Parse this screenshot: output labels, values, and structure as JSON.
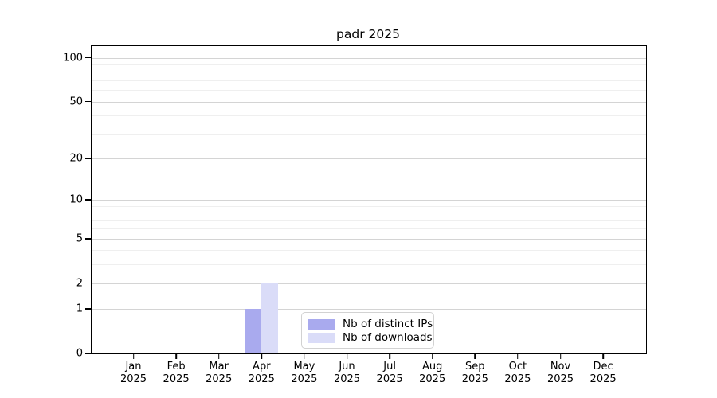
{
  "title": "padr 2025",
  "year_label": "2025",
  "chart_data": {
    "type": "bar",
    "title": "padr 2025",
    "xlabel": "",
    "ylabel": "",
    "categories": [
      "Jan",
      "Feb",
      "Mar",
      "Apr",
      "May",
      "Jun",
      "Jul",
      "Aug",
      "Sep",
      "Oct",
      "Nov",
      "Dec"
    ],
    "category_year": "2025",
    "series": [
      {
        "name": "Nb of distinct IPs",
        "color": "#a9aaee",
        "values": [
          0,
          0,
          0,
          1,
          0,
          0,
          0,
          0,
          0,
          0,
          0,
          0
        ]
      },
      {
        "name": "Nb of downloads",
        "color": "#dadcf8",
        "values": [
          0,
          0,
          0,
          2,
          0,
          0,
          0,
          0,
          0,
          0,
          0,
          0
        ]
      }
    ],
    "y_scale": "log1p",
    "ylim": [
      0,
      120
    ],
    "y_major_ticks": [
      0,
      1,
      2,
      5,
      10,
      20,
      50,
      100
    ],
    "y_minor_gridlines": [
      3,
      4,
      6,
      7,
      8,
      9,
      30,
      40,
      60,
      70,
      80,
      90
    ],
    "grid": true,
    "legend_position": "lower center",
    "colors": {
      "axis": "#000000",
      "major_grid": "#d4d4d4",
      "minor_grid": "#efefef",
      "background": "#ffffff"
    }
  }
}
